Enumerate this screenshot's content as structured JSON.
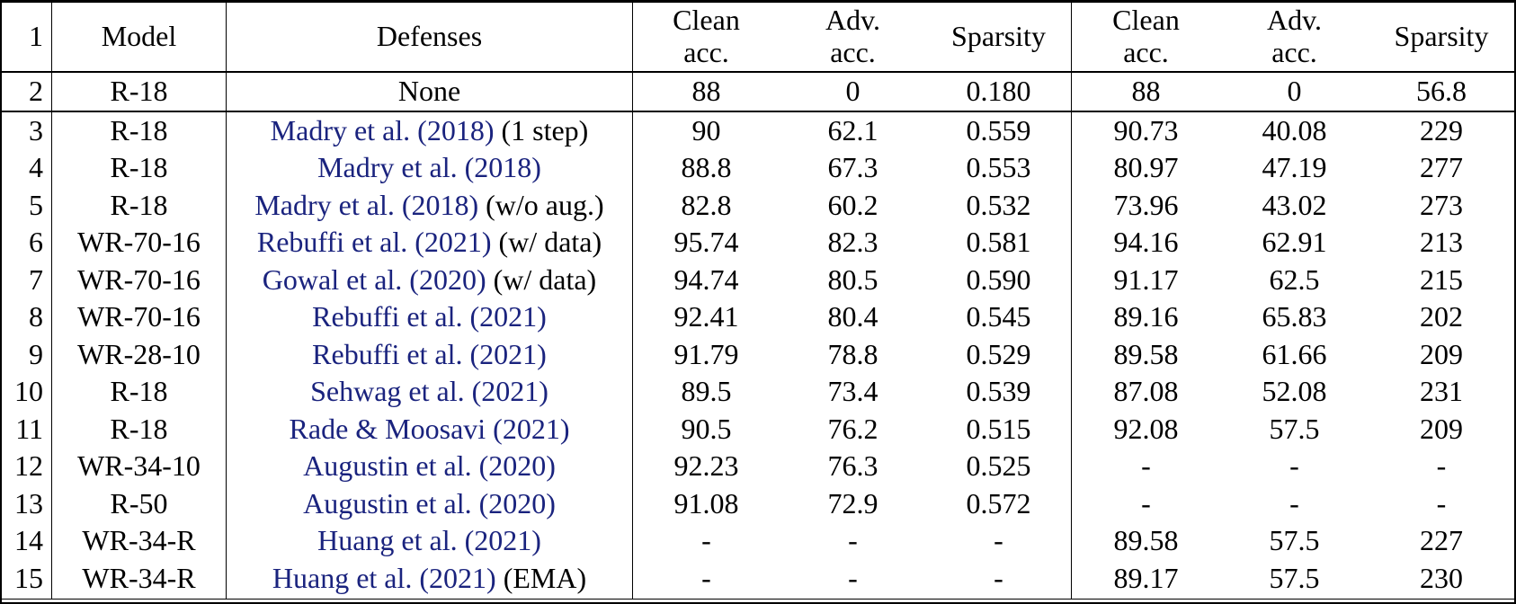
{
  "colors": {
    "citation_navy": "#1a237e",
    "border_black": "#000000",
    "background": "#ffffff",
    "text": "#000000"
  },
  "table": {
    "header": {
      "index": "1",
      "model": "Model",
      "defenses": "Defenses",
      "group1": {
        "clean_top": "Clean",
        "clean_bottom": "acc.",
        "adv_top": "Adv.",
        "adv_bottom": "acc.",
        "sparsity": "Sparsity"
      },
      "group2": {
        "clean_top": "Clean",
        "clean_bottom": "acc.",
        "adv_top": "Adv.",
        "adv_bottom": "acc.",
        "sparsity": "Sparsity"
      }
    },
    "rows": [
      {
        "idx": "2",
        "model": "R-18",
        "cite": "None",
        "link": false,
        "suffix": "",
        "cells": [
          "88",
          "0",
          "0.180",
          "88",
          "0",
          "56.8"
        ]
      },
      {
        "idx": "3",
        "model": "R-18",
        "cite": "Madry et al. (2018)",
        "link": true,
        "suffix": "(1 step)",
        "cells": [
          "90",
          "62.1",
          "0.559",
          "90.73",
          "40.08",
          "229"
        ]
      },
      {
        "idx": "4",
        "model": "R-18",
        "cite": "Madry et al. (2018)",
        "link": true,
        "suffix": "",
        "cells": [
          "88.8",
          "67.3",
          "0.553",
          "80.97",
          "47.19",
          "277"
        ]
      },
      {
        "idx": "5",
        "model": "R-18",
        "cite": "Madry et al. (2018)",
        "link": true,
        "suffix": "(w/o aug.)",
        "cells": [
          "82.8",
          "60.2",
          "0.532",
          "73.96",
          "43.02",
          "273"
        ]
      },
      {
        "idx": "6",
        "model": "WR-70-16",
        "cite": "Rebuffi et al. (2021)",
        "link": true,
        "suffix": "(w/ data)",
        "cells": [
          "95.74",
          "82.3",
          "0.581",
          "94.16",
          "62.91",
          "213"
        ]
      },
      {
        "idx": "7",
        "model": "WR-70-16",
        "cite": "Gowal et al. (2020)",
        "link": true,
        "suffix": "(w/ data)",
        "cells": [
          "94.74",
          "80.5",
          "0.590",
          "91.17",
          "62.5",
          "215"
        ]
      },
      {
        "idx": "8",
        "model": "WR-70-16",
        "cite": "Rebuffi et al. (2021)",
        "link": true,
        "suffix": "",
        "cells": [
          "92.41",
          "80.4",
          "0.545",
          "89.16",
          "65.83",
          "202"
        ]
      },
      {
        "idx": "9",
        "model": "WR-28-10",
        "cite": "Rebuffi et al. (2021)",
        "link": true,
        "suffix": "",
        "cells": [
          "91.79",
          "78.8",
          "0.529",
          "89.58",
          "61.66",
          "209"
        ]
      },
      {
        "idx": "10",
        "model": "R-18",
        "cite": "Sehwag et al. (2021)",
        "link": true,
        "suffix": "",
        "cells": [
          "89.5",
          "73.4",
          "0.539",
          "87.08",
          "52.08",
          "231"
        ]
      },
      {
        "idx": "11",
        "model": "R-18",
        "cite": "Rade & Moosavi (2021)",
        "link": true,
        "suffix": "",
        "cells": [
          "90.5",
          "76.2",
          "0.515",
          "92.08",
          "57.5",
          "209"
        ]
      },
      {
        "idx": "12",
        "model": "WR-34-10",
        "cite": "Augustin et al. (2020)",
        "link": true,
        "suffix": "",
        "cells": [
          "92.23",
          "76.3",
          "0.525",
          "-",
          "-",
          "-"
        ]
      },
      {
        "idx": "13",
        "model": "R-50",
        "cite": "Augustin et al. (2020)",
        "link": true,
        "suffix": "",
        "cells": [
          "91.08",
          "72.9",
          "0.572",
          "-",
          "-",
          "-"
        ]
      },
      {
        "idx": "14",
        "model": "WR-34-R",
        "cite": "Huang et al. (2021)",
        "link": true,
        "suffix": "",
        "cells": [
          "-",
          "-",
          "-",
          "89.58",
          "57.5",
          "227"
        ]
      },
      {
        "idx": "15",
        "model": "WR-34-R",
        "cite": "Huang et al. (2021)",
        "link": true,
        "suffix": "(EMA)",
        "cells": [
          "-",
          "-",
          "-",
          "89.17",
          "57.5",
          "230"
        ]
      }
    ]
  }
}
